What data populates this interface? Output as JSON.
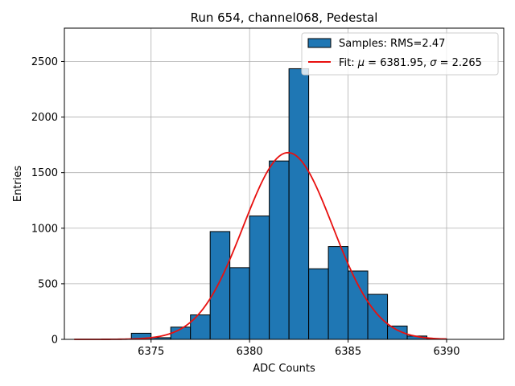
{
  "chart_data": {
    "type": "bar",
    "title": "Run 654, channel068, Pedestal",
    "xlabel": "ADC Counts",
    "ylabel": "Entries",
    "xlim": [
      6370.6,
      6392.9
    ],
    "ylim": [
      0,
      2800
    ],
    "xticks": [
      6375,
      6380,
      6385,
      6390
    ],
    "yticks": [
      0,
      500,
      1000,
      1500,
      2000,
      2500
    ],
    "grid": true,
    "legend_position": "top-right",
    "bar_color": "#1f77b4",
    "fit_color": "#e8100f",
    "histogram": {
      "name": "Samples: RMS=2.47",
      "bins": [
        {
          "x0": 6374.0,
          "x1": 6375.0,
          "value": 55
        },
        {
          "x0": 6375.0,
          "x1": 6376.0,
          "value": 15
        },
        {
          "x0": 6376.0,
          "x1": 6377.0,
          "value": 110
        },
        {
          "x0": 6377.0,
          "x1": 6378.0,
          "value": 220
        },
        {
          "x0": 6378.0,
          "x1": 6379.0,
          "value": 970
        },
        {
          "x0": 6379.0,
          "x1": 6380.0,
          "value": 645
        },
        {
          "x0": 6380.0,
          "x1": 6381.0,
          "value": 1110
        },
        {
          "x0": 6381.0,
          "x1": 6382.0,
          "value": 1605
        },
        {
          "x0": 6382.0,
          "x1": 6383.0,
          "value": 2435
        },
        {
          "x0": 6383.0,
          "x1": 6384.0,
          "value": 635
        },
        {
          "x0": 6384.0,
          "x1": 6385.0,
          "value": 835
        },
        {
          "x0": 6385.0,
          "x1": 6386.0,
          "value": 615
        },
        {
          "x0": 6386.0,
          "x1": 6387.0,
          "value": 405
        },
        {
          "x0": 6387.0,
          "x1": 6388.0,
          "value": 120
        },
        {
          "x0": 6388.0,
          "x1": 6389.0,
          "value": 30
        },
        {
          "x0": 6389.0,
          "x1": 6390.0,
          "value": 5
        }
      ]
    },
    "fit": {
      "name": "Fit: μ = 6381.95, σ = 2.265",
      "name_parts": {
        "prefix": "Fit: ",
        "mu_symbol": "μ",
        "mu_text": " = 6381.95, ",
        "sigma_symbol": "σ",
        "sigma_text": " = 2.265"
      },
      "mu": 6381.95,
      "sigma": 2.265,
      "amplitude": 1680,
      "x_range": [
        6371.1,
        6390.0
      ]
    }
  }
}
